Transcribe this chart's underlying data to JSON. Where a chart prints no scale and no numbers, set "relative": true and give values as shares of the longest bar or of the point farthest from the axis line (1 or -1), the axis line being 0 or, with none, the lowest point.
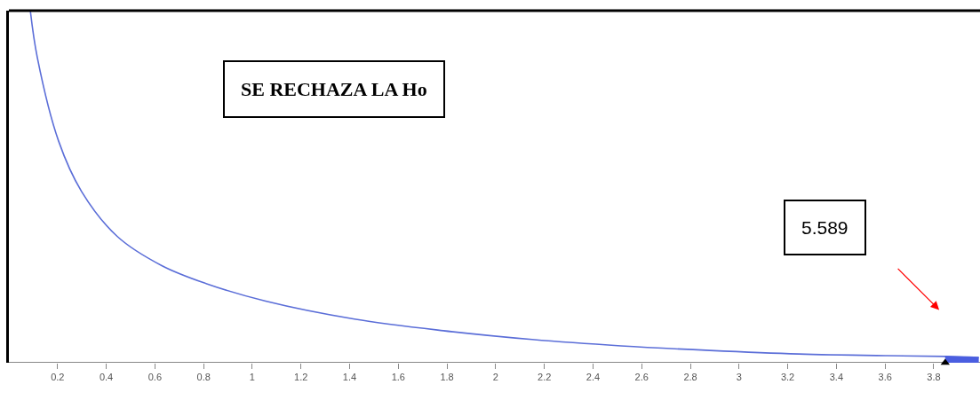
{
  "chart_data": {
    "type": "line",
    "relative": true,
    "x": [
      0.088,
      0.117,
      0.204,
      0.299,
      0.445,
      0.628,
      0.81,
      1.055,
      1.42,
      1.785,
      2.15,
      2.515,
      2.88,
      3.245,
      3.61,
      3.847,
      3.985
    ],
    "series": [
      {
        "color": "#5b6ed8",
        "values": [
          1.0,
          0.866,
          0.63,
          0.486,
          0.359,
          0.276,
          0.225,
          0.175,
          0.124,
          0.091,
          0.066,
          0.048,
          0.035,
          0.025,
          0.02,
          0.018,
          0.015
        ]
      },
      {
        "type": "area",
        "color": "#4a5ee0",
        "values": [
          null,
          null,
          null,
          null,
          null,
          null,
          null,
          null,
          null,
          null,
          null,
          null,
          null,
          null,
          null,
          0.018,
          0.015
        ]
      },
      {
        "type": "scatter",
        "color": "#000000",
        "marker": "triangle",
        "values": [
          null,
          null,
          null,
          null,
          null,
          null,
          null,
          null,
          null,
          null,
          null,
          null,
          null,
          null,
          null,
          0.0,
          null
        ]
      }
    ],
    "xlim": [
      0,
      3.99
    ],
    "xticks": [
      0.2,
      0.4,
      0.6,
      0.8,
      1,
      1.2,
      1.4,
      1.6,
      1.8,
      2,
      2.2,
      2.4,
      2.6,
      2.8,
      3,
      3.2,
      3.4,
      3.6,
      3.8
    ],
    "annotations": [
      "SE RECHAZA LA Ho",
      "5.589"
    ],
    "grid": false
  }
}
